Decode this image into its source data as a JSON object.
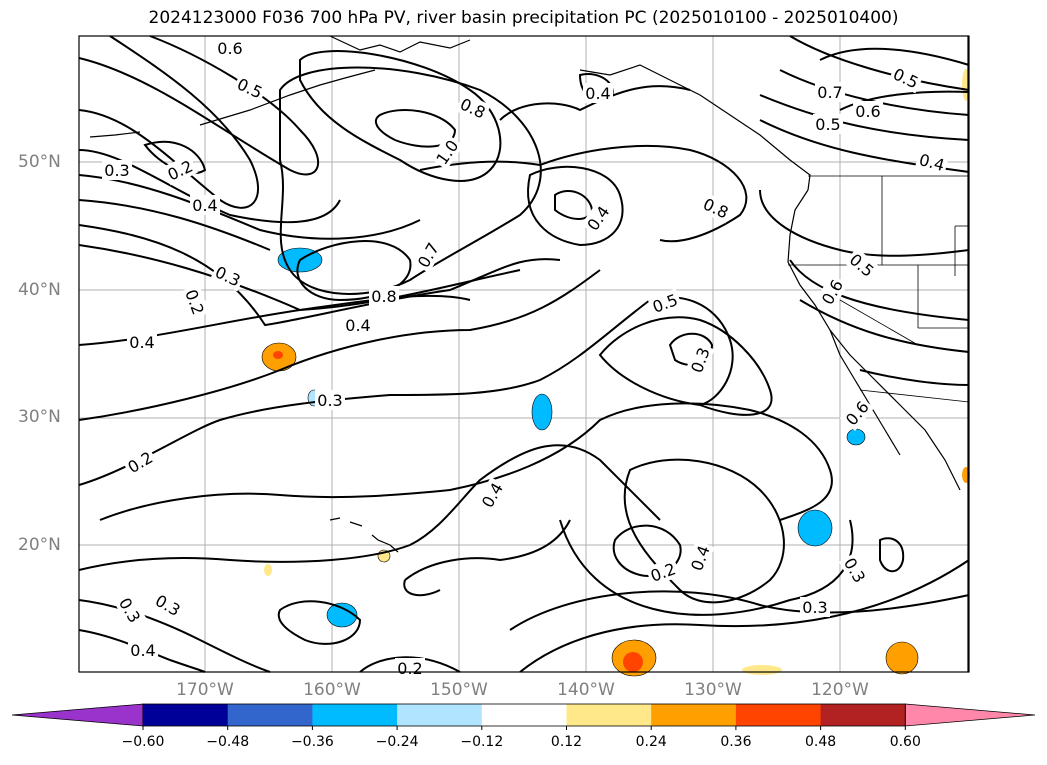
{
  "title": "2024123000 F036 700 hPa PV, river basin precipitation PC (2025010100 - 2025010400)",
  "lat_labels": [
    "50°N",
    "40°N",
    "30°N",
    "20°N"
  ],
  "lon_labels": [
    "170°W",
    "160°W",
    "150°W",
    "140°W",
    "130°W",
    "120°W"
  ],
  "contour_labels": [
    "0.6",
    "0.5",
    "0.3",
    "0.2",
    "0.4",
    "1.0",
    "0.8",
    "0.4",
    "0.8",
    "0.7",
    "0.6",
    "0.5",
    "0.4",
    "0.5",
    "0.3",
    "0.6",
    "0.8",
    "0.7",
    "0.4",
    "0.4",
    "0.4",
    "0.5",
    "0.3",
    "0.2",
    "0.2",
    "0.3",
    "0.4",
    "0.3",
    "0.3",
    "0.4",
    "0.3",
    "0.2",
    "0.3",
    "0.2",
    "0.4",
    "0.5",
    "0.6"
  ],
  "colorbar": {
    "ticks": [
      "−0.60",
      "−0.48",
      "−0.36",
      "−0.24",
      "−0.12",
      "0.12",
      "0.24",
      "0.36",
      "0.48",
      "0.60"
    ],
    "colors": [
      "#9933cc",
      "#000099",
      "#3366cc",
      "#00bbff",
      "#b0e4ff",
      "#ffffff",
      "#ffe88a",
      "#ffa000",
      "#ff4400",
      "#b22222",
      "#ff88aa"
    ]
  }
}
